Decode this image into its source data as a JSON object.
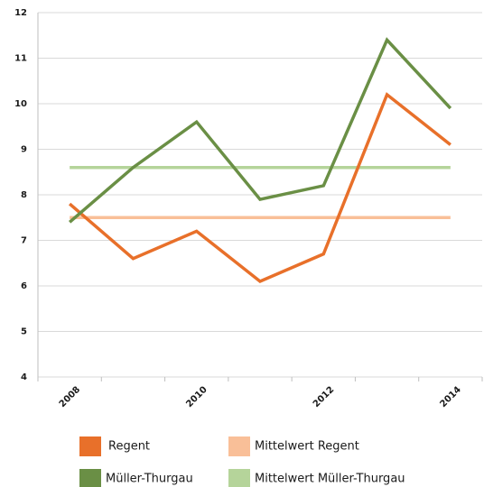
{
  "chart_data": {
    "type": "line",
    "categories": [
      "2008",
      null,
      "2010",
      null,
      "2012",
      null,
      "2014"
    ],
    "series": [
      {
        "name": "Regent",
        "color": "#e8702a",
        "values": [
          7.8,
          6.6,
          7.2,
          6.1,
          6.7,
          10.2,
          9.1
        ]
      },
      {
        "name": "Mittelwert Regent",
        "color": "#f9bf98",
        "values": [
          7.5,
          7.5,
          7.5,
          7.5,
          7.5,
          7.5,
          7.5
        ]
      },
      {
        "name": "Müller-Thurgau",
        "color": "#6a8f45",
        "values": [
          7.4,
          8.6,
          9.6,
          7.9,
          8.2,
          11.4,
          9.9
        ]
      },
      {
        "name": "Mittelwert Müller-Thurgau",
        "color": "#b5d49a",
        "values": [
          8.6,
          8.6,
          8.6,
          8.6,
          8.6,
          8.6,
          8.6
        ]
      }
    ],
    "ylim": [
      4,
      12
    ],
    "yticks": [
      4,
      5,
      6,
      7,
      8,
      9,
      10,
      11,
      12
    ],
    "grid": true
  }
}
